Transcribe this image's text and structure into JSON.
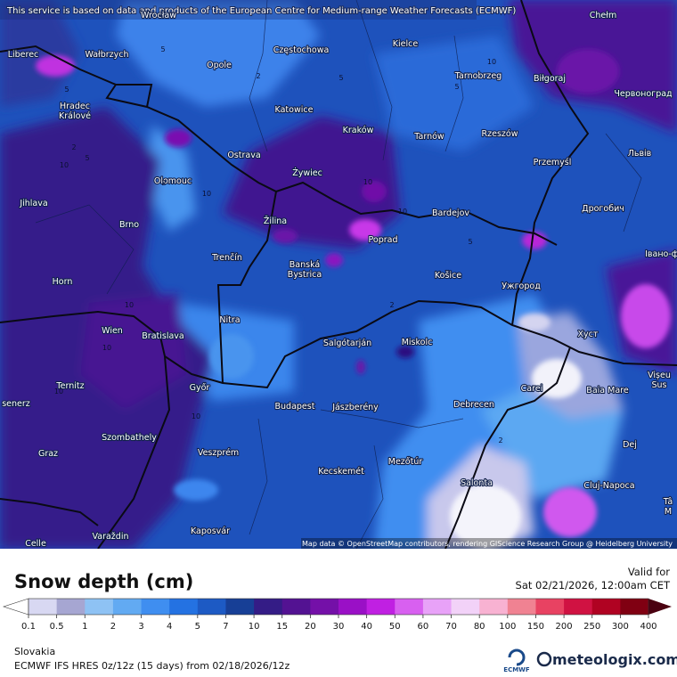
{
  "notice": "This service is based on data and products of the European Centre for Medium-range Weather Forecasts (ECMWF)",
  "cities": [
    "Wrocław",
    "Opole",
    "Częstochowa",
    "Kielce",
    "Chełm",
    "Liberec",
    "Wałbrzych",
    "Tarnobrzeg",
    "Biłgoraj",
    "Червоноград",
    [
      "Hradec",
      "Králové"
    ],
    "Katowice",
    "Kraków",
    "Tarnów",
    "Rzeszów",
    "Ostrava",
    "Żywiec",
    "Przemyśl",
    "Львів",
    "Olomouc",
    "Jihlava",
    "Žilina",
    "Bardejov",
    "Дрогобич",
    "Brno",
    "Poprad",
    "Trenčín",
    [
      "Banská",
      "Bystrica"
    ],
    "Košice",
    "Ужгород",
    "Івано-ф",
    "Horn",
    "Nitra",
    "Wien",
    "Bratislava",
    "Хуст",
    "Salgótarján",
    "Miskolc",
    "Ternitz",
    "Győr",
    "Carei",
    "Baia Mare",
    [
      "Vișeu",
      "Sus"
    ],
    "Budapest",
    "Jászberény",
    "Debrecen",
    "senerz",
    "Szombathely",
    "Dej",
    "Graz",
    "Veszprém",
    "Mezőtúr",
    "Kecskemét",
    "Salonta",
    "Cluj-Napoca",
    [
      "Tâ",
      "M"
    ],
    "Celle",
    "Varaždin",
    "Kaposvár"
  ],
  "contour_labels": [
    5,
    2,
    10,
    5,
    5,
    2,
    10,
    5,
    10,
    10,
    5,
    2,
    10,
    10,
    2,
    5,
    10,
    10,
    10,
    2
  ],
  "attribution": "Map data © OpenStreetMap contributors, rendering GIScience Research Group @ Heidelberg University",
  "title": "Snow depth (cm)",
  "valid_label": "Valid for",
  "valid_time": "Sat 02/21/2026, 12:00am CET",
  "legend": {
    "labels": [
      "0.1",
      "0.5",
      "1",
      "2",
      "3",
      "4",
      "5",
      "7",
      "10",
      "15",
      "20",
      "30",
      "40",
      "50",
      "60",
      "70",
      "80",
      "100",
      "150",
      "200",
      "250",
      "300",
      "400"
    ],
    "colors": [
      "#d8d8f2",
      "#a6a6d2",
      "#8ec2f4",
      "#62aaf2",
      "#3f8ef0",
      "#2472e2",
      "#1d5ac4",
      "#173f96",
      "#341c86",
      "#531292",
      "#7410a8",
      "#9a10c6",
      "#c020e2",
      "#d860f0",
      "#e8a2f8",
      "#f2d2f8",
      "#f8b2d2",
      "#f08292",
      "#e84262",
      "#d01242",
      "#b00222",
      "#800012"
    ],
    "under_color": "#ffffff",
    "over_color": "#4a0010"
  },
  "region": "Slovakia",
  "model": "ECMWF IFS HRES 0z/12z (15 days) from 02/18/2026/12z",
  "ecmwf_logo": "ECMWF",
  "brand": "meteologix.com"
}
